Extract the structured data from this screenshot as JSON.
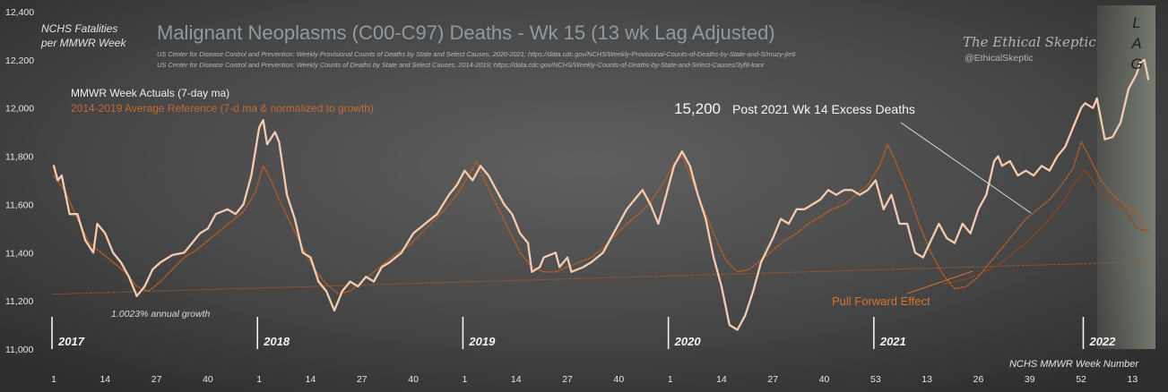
{
  "chart_data": {
    "type": "line",
    "title": "Malignant Neoplasms (C00-C97) Deaths - Wk 15 (13 wk Lag Adjusted)",
    "sources": [
      "US Center for Disease Control and Prevention: Weekly  Provisional Counts of Deaths by State and Select Causes, 2020-2021; https://data.cdc.gov/NCHS/Weekly-Provisional-Counts-of-Deaths-by-State-and-S/muzy-jte6",
      "US Center for Disease Control and Prevention: Weekly  Counts of Deaths by State and Select Causes, 2014-2019; https://data.cdc.gov/NCHS/Weekly-Counts-of-Deaths-by-State-and-Select-Causes/3yf8-kanr"
    ],
    "ylabel_line1": "NCHS Fatalities",
    "ylabel_line2": "per MMWR Week",
    "xlabel": "NCHS MMWR Week Number",
    "ylim": [
      11000,
      12400
    ],
    "yticks": [
      11000,
      11200,
      11400,
      11600,
      11800,
      12000,
      12200,
      12400
    ],
    "ytick_labels": [
      "11,000",
      "11,200",
      "11,400",
      "11,600",
      "11,800",
      "12,000",
      "12,200",
      "12,400"
    ],
    "x_unit": "week index (0 = 2017 week 1)",
    "xlim": [
      0,
      277
    ],
    "x_ticks": [
      {
        "x": 0,
        "label": "1"
      },
      {
        "x": 13,
        "label": "14"
      },
      {
        "x": 26,
        "label": "27"
      },
      {
        "x": 39,
        "label": "40"
      },
      {
        "x": 52,
        "label": "1"
      },
      {
        "x": 65,
        "label": "14"
      },
      {
        "x": 78,
        "label": "27"
      },
      {
        "x": 91,
        "label": "40"
      },
      {
        "x": 104,
        "label": "1"
      },
      {
        "x": 117,
        "label": "14"
      },
      {
        "x": 130,
        "label": "27"
      },
      {
        "x": 143,
        "label": "40"
      },
      {
        "x": 156,
        "label": "1"
      },
      {
        "x": 169,
        "label": "14"
      },
      {
        "x": 182,
        "label": "27"
      },
      {
        "x": 195,
        "label": "40"
      },
      {
        "x": 208,
        "label": "53"
      },
      {
        "x": 221,
        "label": "13"
      },
      {
        "x": 234,
        "label": "26"
      },
      {
        "x": 247,
        "label": "39"
      },
      {
        "x": 260,
        "label": "52"
      },
      {
        "x": 273,
        "label": "13"
      }
    ],
    "year_markers": [
      {
        "x": 0,
        "label": "2017"
      },
      {
        "x": 52,
        "label": "2018"
      },
      {
        "x": 104,
        "label": "2019"
      },
      {
        "x": 156,
        "label": "2020"
      },
      {
        "x": 208,
        "label": "2021"
      },
      {
        "x": 261,
        "label": "2022"
      }
    ],
    "lag_region": {
      "from": 264,
      "to": 277,
      "letters": [
        "L",
        "A",
        "G"
      ]
    },
    "series": [
      {
        "name": "MMWR Week Actuals (7-day ma)",
        "color": "#f4cbb0",
        "points": [
          [
            0,
            11760
          ],
          [
            1,
            11700
          ],
          [
            2,
            11720
          ],
          [
            3,
            11640
          ],
          [
            4,
            11560
          ],
          [
            6,
            11560
          ],
          [
            8,
            11450
          ],
          [
            10,
            11400
          ],
          [
            11,
            11520
          ],
          [
            13,
            11480
          ],
          [
            15,
            11400
          ],
          [
            17,
            11360
          ],
          [
            19,
            11300
          ],
          [
            21,
            11220
          ],
          [
            23,
            11260
          ],
          [
            25,
            11330
          ],
          [
            27,
            11360
          ],
          [
            30,
            11390
          ],
          [
            33,
            11400
          ],
          [
            35,
            11440
          ],
          [
            37,
            11480
          ],
          [
            39,
            11500
          ],
          [
            41,
            11560
          ],
          [
            44,
            11580
          ],
          [
            46,
            11560
          ],
          [
            48,
            11600
          ],
          [
            50,
            11720
          ],
          [
            52,
            11920
          ],
          [
            53,
            11950
          ],
          [
            54,
            11850
          ],
          [
            56,
            11900
          ],
          [
            57,
            11860
          ],
          [
            59,
            11640
          ],
          [
            61,
            11540
          ],
          [
            63,
            11400
          ],
          [
            65,
            11380
          ],
          [
            67,
            11280
          ],
          [
            69,
            11240
          ],
          [
            71,
            11160
          ],
          [
            73,
            11240
          ],
          [
            75,
            11280
          ],
          [
            77,
            11260
          ],
          [
            79,
            11300
          ],
          [
            81,
            11280
          ],
          [
            83,
            11340
          ],
          [
            85,
            11360
          ],
          [
            88,
            11400
          ],
          [
            91,
            11480
          ],
          [
            94,
            11520
          ],
          [
            97,
            11560
          ],
          [
            100,
            11640
          ],
          [
            102,
            11680
          ],
          [
            104,
            11740
          ],
          [
            106,
            11700
          ],
          [
            108,
            11760
          ],
          [
            110,
            11720
          ],
          [
            112,
            11660
          ],
          [
            114,
            11600
          ],
          [
            116,
            11560
          ],
          [
            118,
            11480
          ],
          [
            120,
            11440
          ],
          [
            121,
            11320
          ],
          [
            123,
            11340
          ],
          [
            124,
            11380
          ],
          [
            127,
            11400
          ],
          [
            128,
            11340
          ],
          [
            130,
            11380
          ],
          [
            131,
            11320
          ],
          [
            134,
            11340
          ],
          [
            136,
            11360
          ],
          [
            139,
            11400
          ],
          [
            141,
            11460
          ],
          [
            143,
            11520
          ],
          [
            145,
            11580
          ],
          [
            147,
            11620
          ],
          [
            149,
            11660
          ],
          [
            151,
            11600
          ],
          [
            153,
            11520
          ],
          [
            155,
            11640
          ],
          [
            157,
            11760
          ],
          [
            159,
            11820
          ],
          [
            161,
            11760
          ],
          [
            163,
            11640
          ],
          [
            165,
            11540
          ],
          [
            167,
            11380
          ],
          [
            169,
            11260
          ],
          [
            171,
            11100
          ],
          [
            173,
            11080
          ],
          [
            175,
            11140
          ],
          [
            177,
            11240
          ],
          [
            179,
            11360
          ],
          [
            182,
            11460
          ],
          [
            184,
            11540
          ],
          [
            186,
            11520
          ],
          [
            188,
            11580
          ],
          [
            190,
            11580
          ],
          [
            192,
            11600
          ],
          [
            194,
            11620
          ],
          [
            196,
            11660
          ],
          [
            198,
            11640
          ],
          [
            200,
            11660
          ],
          [
            202,
            11660
          ],
          [
            204,
            11640
          ],
          [
            206,
            11660
          ],
          [
            208,
            11700
          ],
          [
            210,
            11580
          ],
          [
            212,
            11640
          ],
          [
            214,
            11520
          ],
          [
            216,
            11520
          ],
          [
            218,
            11400
          ],
          [
            220,
            11380
          ],
          [
            222,
            11450
          ],
          [
            224,
            11520
          ],
          [
            226,
            11460
          ],
          [
            228,
            11440
          ],
          [
            230,
            11520
          ],
          [
            232,
            11480
          ],
          [
            234,
            11580
          ],
          [
            236,
            11640
          ],
          [
            238,
            11780
          ],
          [
            239,
            11800
          ],
          [
            240,
            11760
          ],
          [
            242,
            11780
          ],
          [
            244,
            11720
          ],
          [
            246,
            11740
          ],
          [
            248,
            11720
          ],
          [
            250,
            11760
          ],
          [
            252,
            11740
          ],
          [
            254,
            11800
          ],
          [
            256,
            11840
          ],
          [
            258,
            11920
          ],
          [
            260,
            12000
          ],
          [
            261,
            12020
          ],
          [
            263,
            12000
          ],
          [
            264,
            12040
          ],
          [
            266,
            11870
          ],
          [
            268,
            11880
          ],
          [
            270,
            11940
          ],
          [
            272,
            12080
          ],
          [
            274,
            12140
          ],
          [
            275,
            12190
          ],
          [
            276,
            12200
          ],
          [
            277,
            12120
          ]
        ]
      },
      {
        "name": "2014-2019  Average Reference (7-d ma & normalized to growth)",
        "color": "#b25e2a",
        "points": [
          [
            0,
            11720
          ],
          [
            3,
            11650
          ],
          [
            6,
            11540
          ],
          [
            9,
            11440
          ],
          [
            12,
            11400
          ],
          [
            15,
            11360
          ],
          [
            18,
            11320
          ],
          [
            21,
            11260
          ],
          [
            24,
            11240
          ],
          [
            27,
            11280
          ],
          [
            30,
            11330
          ],
          [
            33,
            11380
          ],
          [
            36,
            11410
          ],
          [
            39,
            11450
          ],
          [
            42,
            11490
          ],
          [
            45,
            11530
          ],
          [
            48,
            11570
          ],
          [
            51,
            11650
          ],
          [
            53,
            11760
          ],
          [
            55,
            11700
          ],
          [
            57,
            11620
          ],
          [
            60,
            11520
          ],
          [
            63,
            11420
          ],
          [
            66,
            11330
          ],
          [
            69,
            11270
          ],
          [
            72,
            11230
          ],
          [
            75,
            11240
          ],
          [
            78,
            11280
          ],
          [
            81,
            11320
          ],
          [
            84,
            11360
          ],
          [
            87,
            11400
          ],
          [
            90,
            11430
          ],
          [
            93,
            11480
          ],
          [
            96,
            11530
          ],
          [
            99,
            11580
          ],
          [
            102,
            11640
          ],
          [
            105,
            11720
          ],
          [
            107,
            11780
          ],
          [
            109,
            11700
          ],
          [
            112,
            11600
          ],
          [
            115,
            11500
          ],
          [
            118,
            11400
          ],
          [
            121,
            11340
          ],
          [
            124,
            11320
          ],
          [
            127,
            11320
          ],
          [
            130,
            11340
          ],
          [
            133,
            11360
          ],
          [
            136,
            11380
          ],
          [
            139,
            11420
          ],
          [
            142,
            11470
          ],
          [
            145,
            11520
          ],
          [
            148,
            11560
          ],
          [
            151,
            11610
          ],
          [
            154,
            11680
          ],
          [
            157,
            11770
          ],
          [
            159,
            11800
          ],
          [
            161,
            11720
          ],
          [
            164,
            11600
          ],
          [
            167,
            11480
          ],
          [
            170,
            11370
          ],
          [
            173,
            11320
          ],
          [
            176,
            11330
          ],
          [
            179,
            11370
          ],
          [
            182,
            11410
          ],
          [
            185,
            11450
          ],
          [
            188,
            11480
          ],
          [
            191,
            11520
          ],
          [
            194,
            11550
          ],
          [
            197,
            11580
          ],
          [
            200,
            11600
          ],
          [
            203,
            11640
          ],
          [
            206,
            11680
          ],
          [
            209,
            11760
          ],
          [
            211,
            11850
          ],
          [
            213,
            11780
          ],
          [
            216,
            11660
          ],
          [
            219,
            11520
          ],
          [
            222,
            11400
          ],
          [
            225,
            11310
          ],
          [
            228,
            11250
          ],
          [
            231,
            11260
          ],
          [
            234,
            11300
          ],
          [
            237,
            11360
          ],
          [
            240,
            11420
          ],
          [
            243,
            11480
          ],
          [
            246,
            11540
          ],
          [
            249,
            11580
          ],
          [
            252,
            11620
          ],
          [
            255,
            11680
          ],
          [
            258,
            11750
          ],
          [
            260,
            11860
          ],
          [
            262,
            11800
          ],
          [
            265,
            11700
          ],
          [
            268,
            11640
          ],
          [
            271,
            11600
          ],
          [
            274,
            11560
          ],
          [
            277,
            11480
          ]
        ]
      },
      {
        "name": "2014-2019 Average Reference (lagged, dotted)",
        "color": "#8c4a22",
        "points": [
          [
            225,
            11270
          ],
          [
            228,
            11280
          ],
          [
            231,
            11290
          ],
          [
            234,
            11310
          ],
          [
            237,
            11330
          ],
          [
            240,
            11360
          ],
          [
            243,
            11400
          ],
          [
            246,
            11440
          ],
          [
            249,
            11490
          ],
          [
            252,
            11540
          ],
          [
            255,
            11600
          ],
          [
            258,
            11680
          ],
          [
            261,
            11740
          ],
          [
            263,
            11700
          ],
          [
            265,
            11640
          ],
          [
            268,
            11620
          ],
          [
            271,
            11580
          ],
          [
            274,
            11500
          ],
          [
            277,
            11490
          ]
        ]
      },
      {
        "name": "Growth trend",
        "color": "#9a5a30",
        "points": [
          [
            0,
            11228
          ],
          [
            277,
            11362
          ]
        ]
      }
    ],
    "legend": {
      "actuals_label": "MMWR Week Actuals (7-day ma)",
      "reference_label": "2014-2019  Average Reference (7-d ma & normalized to growth)"
    },
    "annotations": {
      "growth": "1.0023% annual growth",
      "excess_value": "15,200",
      "excess_text": "Post 2021 Wk 14 Excess Deaths",
      "pull_forward": "Pull Forward Effect",
      "brand_name": "The Ethical Skeptic",
      "brand_handle": "@EthicalSkeptic"
    }
  }
}
